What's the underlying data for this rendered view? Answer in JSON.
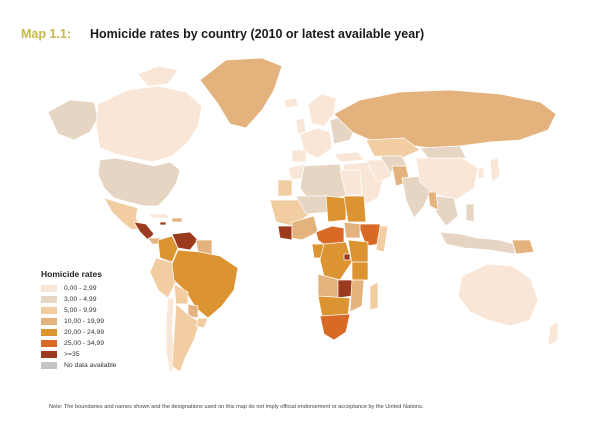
{
  "header": {
    "map_number": "Map 1.1:",
    "title": "Homicide rates by country (2010 or latest available year)"
  },
  "legend": {
    "title": "Homicide rates",
    "items": [
      {
        "label": "0,00 - 2,99",
        "color": "#fae6d6"
      },
      {
        "label": "3,00 - 4,99",
        "color": "#e6d5c3"
      },
      {
        "label": "5,00 - 9,99",
        "color": "#f2cda2"
      },
      {
        "label": "10,00 - 19,99",
        "color": "#e4b27c"
      },
      {
        "label": "20,00 - 24,99",
        "color": "#dc9432"
      },
      {
        "label": "25,00 - 34,99",
        "color": "#d96a26"
      },
      {
        "label": ">=35",
        "color": "#9b3a1c"
      },
      {
        "label": "No data available",
        "color": "#c4c4c4"
      }
    ]
  },
  "note": "Note: The boundaries and names shown and the designations used on this map do not imply official endorsement or acceptance by the United Nations."
}
